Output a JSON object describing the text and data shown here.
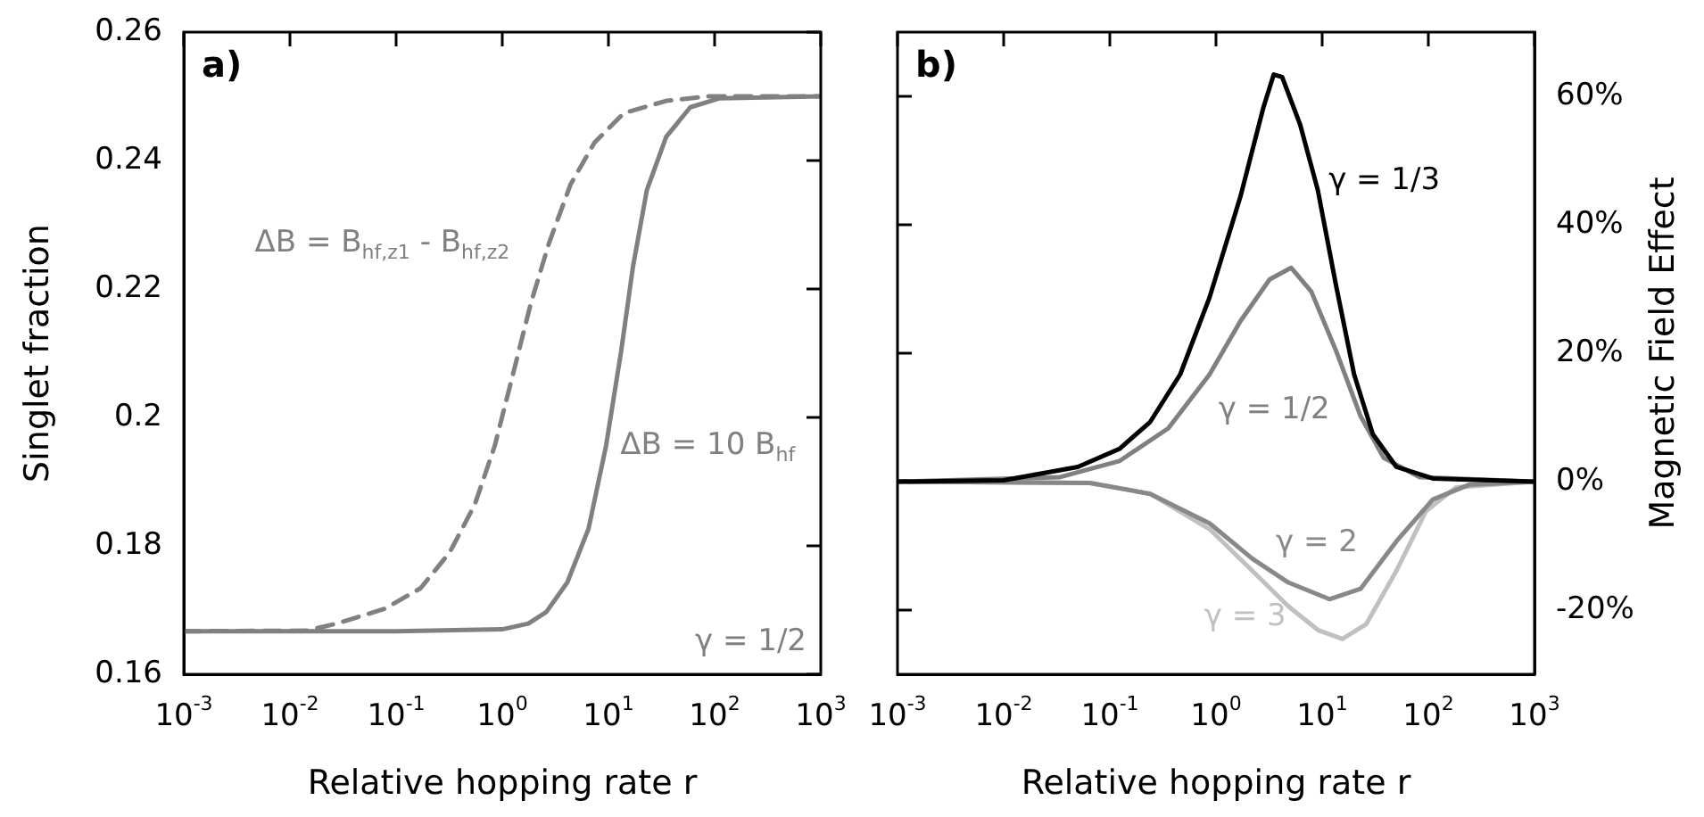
{
  "chart_data": [
    {
      "type": "line",
      "title": "a)",
      "xlabel": "Relative hopping rate r",
      "ylabel": "Singlet fraction",
      "log": "x",
      "xlim": [
        0.001,
        1000
      ],
      "xticks": [
        {
          "value": 0.001,
          "label": "10$^{-3}$"
        },
        {
          "value": 0.01,
          "label": "10$^{-2}$"
        },
        {
          "value": 0.1,
          "label": "10$^{-1}$"
        },
        {
          "value": 1,
          "label": "10$^{0}$"
        },
        {
          "value": 10,
          "label": "10$^{1}$"
        },
        {
          "value": 100,
          "label": "10$^{2}$"
        },
        {
          "value": 1000,
          "label": "10$^{3}$"
        }
      ],
      "ylim": [
        0.16,
        0.26
      ],
      "yticks": [
        0.16,
        0.18,
        0.2,
        0.22,
        0.24,
        0.26
      ],
      "series": [
        {
          "name": "ΔB = B$_{hf,z1}$ - B$_{hf,z2}$",
          "color": "#808080",
          "line_style": "dashed",
          "x": [
            0.001,
            0.0145,
            0.0275,
            0.078,
            0.17,
            0.32,
            0.55,
            0.85,
            1.26,
            1.86,
            2.75,
            4.4,
            7.4,
            14,
            35,
            87,
            1000
          ],
          "values": [
            0.1667,
            0.1668,
            0.1679,
            0.1702,
            0.1734,
            0.179,
            0.1864,
            0.1956,
            0.2067,
            0.2178,
            0.2271,
            0.2363,
            0.2428,
            0.2474,
            0.2493,
            0.25,
            0.25
          ]
        },
        {
          "name": "ΔB = 10 B$_{hf}$",
          "color": "#808080",
          "line_style": "solid",
          "x": [
            0.001,
            0.01,
            0.1,
            1.0,
            1.76,
            2.6,
            4.1,
            6.5,
            9.5,
            13.2,
            17,
            23,
            35,
            59,
            112,
            1000
          ],
          "values": [
            0.1667,
            0.1667,
            0.1667,
            0.167,
            0.1679,
            0.1697,
            0.1743,
            0.1827,
            0.1956,
            0.2104,
            0.2234,
            0.2354,
            0.2437,
            0.2483,
            0.2497,
            0.25
          ]
        }
      ],
      "annotations": [
        "γ = 1/2"
      ]
    },
    {
      "type": "line",
      "title": "b)",
      "xlabel": "Relative hopping rate r",
      "y2label": "Magnetic Field Effect",
      "log": "x",
      "xlim": [
        0.001,
        1000
      ],
      "xticks": [
        {
          "value": 0.001,
          "label": "10$^{-3}$"
        },
        {
          "value": 0.01,
          "label": "10$^{-2}$"
        },
        {
          "value": 0.1,
          "label": "10$^{-1}$"
        },
        {
          "value": 1,
          "label": "10$^{0}$"
        },
        {
          "value": 10,
          "label": "10$^{1}$"
        },
        {
          "value": 100,
          "label": "10$^{2}$"
        },
        {
          "value": 1000,
          "label": "10$^{3}$"
        }
      ],
      "y2lim": [
        -30,
        70
      ],
      "y2ticks": [
        {
          "value": -20,
          "label": "-20%"
        },
        {
          "value": 0,
          "label": "0%"
        },
        {
          "value": 20,
          "label": "20%"
        },
        {
          "value": 40,
          "label": "40%"
        },
        {
          "value": 60,
          "label": "60%"
        }
      ],
      "series": [
        {
          "name": "γ = 1/3",
          "color": "#000000",
          "axis": "y2",
          "x": [
            0.001,
            0.01,
            0.05,
            0.123,
            0.24,
            0.46,
            0.87,
            1.7,
            2.8,
            3.5,
            4.2,
            6.2,
            9.1,
            13.5,
            20,
            30,
            50,
            110,
            1000
          ],
          "values": [
            0,
            0.2,
            2.3,
            5.1,
            9.3,
            16.7,
            28.7,
            44.4,
            58.3,
            63.4,
            63,
            55.6,
            45.4,
            30.6,
            16.7,
            7.4,
            2.3,
            0.5,
            0
          ]
        },
        {
          "name": "γ = 1/2",
          "color": "#808080",
          "axis": "y2",
          "x": [
            0.001,
            0.034,
            0.123,
            0.355,
            0.87,
            1.7,
            3.2,
            5.1,
            7.9,
            13.5,
            23,
            38,
            83,
            1000
          ],
          "values": [
            0,
            0.7,
            3.2,
            8.3,
            16.7,
            25,
            31.5,
            33.3,
            29.6,
            20.4,
            10.2,
            3.7,
            0.7,
            0
          ]
        },
        {
          "name": "γ = 2",
          "color": "#888888",
          "axis": "y2",
          "x": [
            0.001,
            0.065,
            0.24,
            0.87,
            2.2,
            4.8,
            11.7,
            23,
            50,
            110,
            240,
            1000
          ],
          "values": [
            0,
            -0.2,
            -1.9,
            -6.5,
            -12,
            -15.7,
            -18.3,
            -16.7,
            -9.3,
            -2.8,
            -0.5,
            0
          ]
        },
        {
          "name": "γ = 3",
          "color": "#c0c0c0",
          "axis": "y2",
          "x": [
            0.001,
            0.065,
            0.24,
            0.87,
            2.2,
            4.8,
            9.1,
            15.5,
            26,
            50,
            95,
            182,
            1000
          ],
          "values": [
            0,
            -0.2,
            -1.9,
            -7.4,
            -13.9,
            -19.4,
            -23.1,
            -24.5,
            -22.2,
            -13.9,
            -4.6,
            -0.9,
            0
          ]
        }
      ],
      "legend": false
    }
  ]
}
